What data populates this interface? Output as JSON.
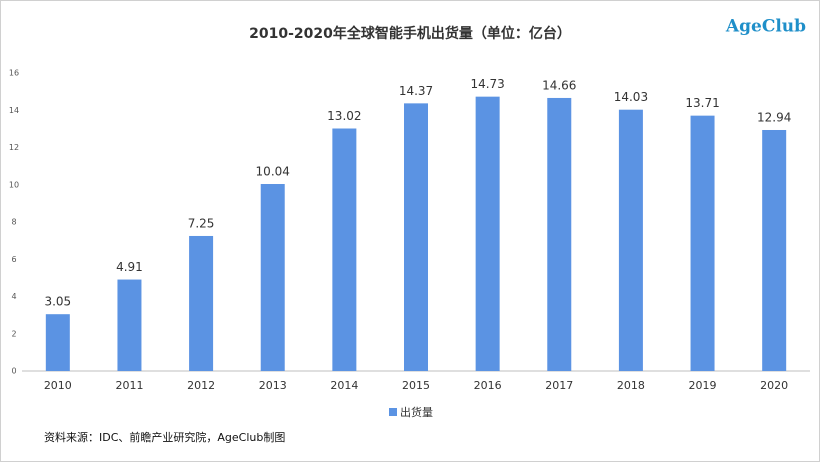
{
  "chart_data": {
    "type": "bar",
    "title": "2010-2020年全球智能手机出货量（单位：亿台）",
    "logo": "AgeClub",
    "source": "资料来源：IDC、前瞻产业研究院，AgeClub制图",
    "categories": [
      "2010",
      "2011",
      "2012",
      "2013",
      "2014",
      "2015",
      "2016",
      "2017",
      "2018",
      "2019",
      "2020"
    ],
    "series": [
      {
        "name": "出货量",
        "color": "#5b93e3",
        "values": [
          3.05,
          4.91,
          7.25,
          10.04,
          13.02,
          14.37,
          14.73,
          14.66,
          14.03,
          13.71,
          12.94
        ]
      }
    ],
    "ylim": [
      0,
      16
    ],
    "yticks": [
      0,
      2,
      4,
      6,
      8,
      10,
      12,
      14,
      16
    ],
    "grid": false,
    "legend": "bottom"
  }
}
